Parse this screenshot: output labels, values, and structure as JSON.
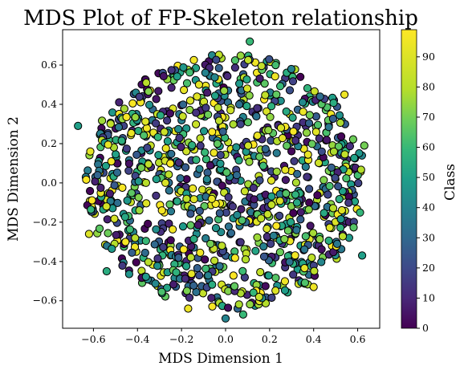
{
  "chart_data": {
    "type": "scatter",
    "title": "MDS Plot of FP-Skeleton relationship",
    "xlabel": "MDS Dimension 1",
    "ylabel": "MDS Dimension 2",
    "xlim": [
      -0.74,
      0.7
    ],
    "ylim": [
      -0.74,
      0.78
    ],
    "xticks": [
      "−0.6",
      "−0.4",
      "−0.2",
      "0.0",
      "0.2",
      "0.4",
      "0.6"
    ],
    "yticks": [
      "−0.6",
      "−0.4",
      "−0.2",
      "0.0",
      "0.2",
      "0.4",
      "0.6"
    ],
    "grid": false,
    "colormap": "viridis",
    "colorbar": {
      "label": "Class",
      "range": [
        0,
        99
      ],
      "ticks": [
        "0",
        "10",
        "20",
        "30",
        "40",
        "50",
        "60",
        "70",
        "80",
        "90"
      ]
    },
    "n_points": 1100,
    "point_distribution": "disk of radius ~0.65 centered at origin, classes 0-99 uniformly mixed",
    "sample_points": [
      {
        "x": 0.11,
        "y": 0.72,
        "class": 60
      },
      {
        "x": -0.67,
        "y": 0.29,
        "class": 50
      },
      {
        "x": -0.62,
        "y": -0.26,
        "class": 90
      },
      {
        "x": 0.63,
        "y": 0.19,
        "class": 70
      },
      {
        "x": 0.62,
        "y": -0.37,
        "class": 50
      },
      {
        "x": 0.54,
        "y": 0.45,
        "class": 95
      },
      {
        "x": -0.36,
        "y": 0.51,
        "class": 80
      },
      {
        "x": -0.17,
        "y": -0.64,
        "class": 95
      },
      {
        "x": 0.4,
        "y": -0.53,
        "class": 95
      },
      {
        "x": 0.0,
        "y": -0.69,
        "class": 40
      },
      {
        "x": 0.08,
        "y": -0.67,
        "class": 60
      },
      {
        "x": -0.54,
        "y": -0.45,
        "class": 55
      }
    ],
    "marker": {
      "edge_color": "#000000",
      "shape": "circle"
    }
  }
}
